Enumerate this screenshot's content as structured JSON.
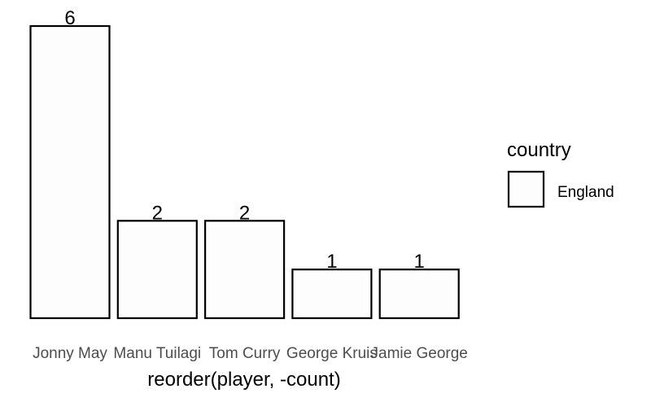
{
  "chart_data": {
    "type": "bar",
    "categories": [
      "Jonny May",
      "Manu Tuilagi",
      "Tom Curry",
      "George Kruis",
      "Jamie George"
    ],
    "values": [
      6,
      2,
      2,
      1,
      1
    ],
    "data_labels": [
      "6",
      "2",
      "2",
      "1",
      "1"
    ],
    "xlabel": "reorder(player, -count)",
    "ylabel": "",
    "ylim": [
      0,
      6
    ],
    "grid": false,
    "legend": {
      "title": "country",
      "entries": [
        "England"
      ],
      "placement": "right"
    },
    "colors": {
      "bar_fill": "#fdfdfd",
      "bar_stroke": "#000000"
    }
  }
}
